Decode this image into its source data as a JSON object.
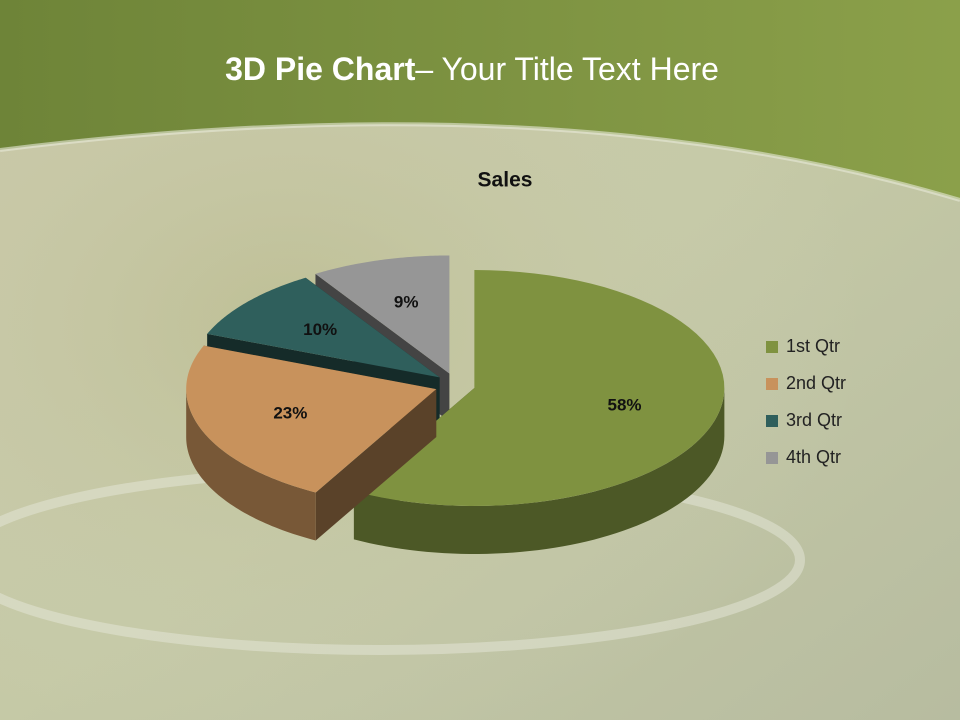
{
  "slide": {
    "title_lead": "3D Pie Chart",
    "title_rest": "– Your Title Text Here"
  },
  "chart_data": {
    "type": "pie",
    "title": "Sales",
    "categories": [
      "1st Qtr",
      "2nd Qtr",
      "3rd Qtr",
      "4th Qtr"
    ],
    "values": [
      58,
      23,
      10,
      9
    ],
    "value_labels": [
      "58%",
      "23%",
      "10%",
      "9%"
    ],
    "colors": [
      "#7f9240",
      "#c8925c",
      "#2f5f5c",
      "#969696"
    ],
    "legend": "right"
  }
}
